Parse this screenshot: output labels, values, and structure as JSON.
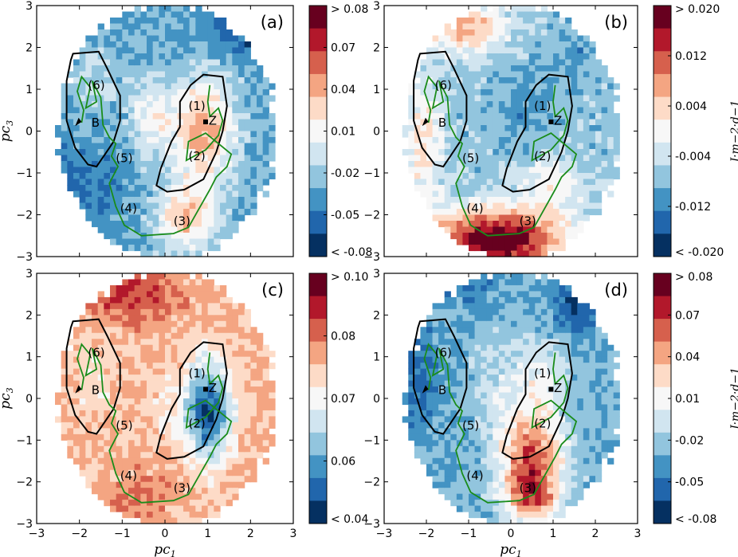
{
  "chart_data": {
    "type": "heatmap",
    "xlabel": "pc1",
    "ylabel": "pc3",
    "xlim": [
      -3,
      3
    ],
    "ylim": [
      -3,
      3
    ],
    "xticks": [
      "−3",
      "−2",
      "−1",
      "0",
      "1",
      "2",
      "3"
    ],
    "yticks": [
      "−3",
      "−2",
      "−1",
      "0",
      "1",
      "2",
      "3"
    ],
    "trajectory_labels": {
      "start": "B",
      "end": "Z"
    },
    "regions": [
      "(1)",
      "(2)",
      "(3)",
      "(4)",
      "(5)",
      "(6)"
    ],
    "colors": {
      "red": [
        "#67001f",
        "#b2182b",
        "#d6604d",
        "#f4a582",
        "#fddbc7"
      ],
      "white": "#f7f7f7",
      "blue": [
        "#d1e5f0",
        "#92c5de",
        "#4393c3",
        "#2166ac",
        "#053061"
      ],
      "trajectory": "#1a8c1a",
      "outline": "#000000"
    },
    "panels": [
      {
        "label": "(a)",
        "pattern": "A",
        "colorbar": {
          "labels": [
            "> 0.08",
            "0.07",
            "0.04",
            "0.01",
            "-0.02",
            "-0.05",
            "< -0.08"
          ],
          "unit": ""
        }
      },
      {
        "label": "(b)",
        "pattern": "B",
        "colorbar": {
          "labels": [
            "> 0.020",
            "0.012",
            "0.004",
            "-0.004",
            "-0.012",
            "< -0.020"
          ],
          "unit": "J·m−2·d−1"
        }
      },
      {
        "label": "(c)",
        "pattern": "C",
        "colorbar": {
          "labels": [
            "> 0.10",
            "0.08",
            "0.07",
            "0.06",
            "< 0.04"
          ],
          "unit": ""
        }
      },
      {
        "label": "(d)",
        "pattern": "D",
        "colorbar": {
          "labels": [
            "> 0.08",
            "0.07",
            "0.04",
            "0.01",
            "-0.02",
            "-0.05",
            "< -0.08"
          ],
          "unit": "J·m−2·d−1"
        }
      }
    ]
  }
}
